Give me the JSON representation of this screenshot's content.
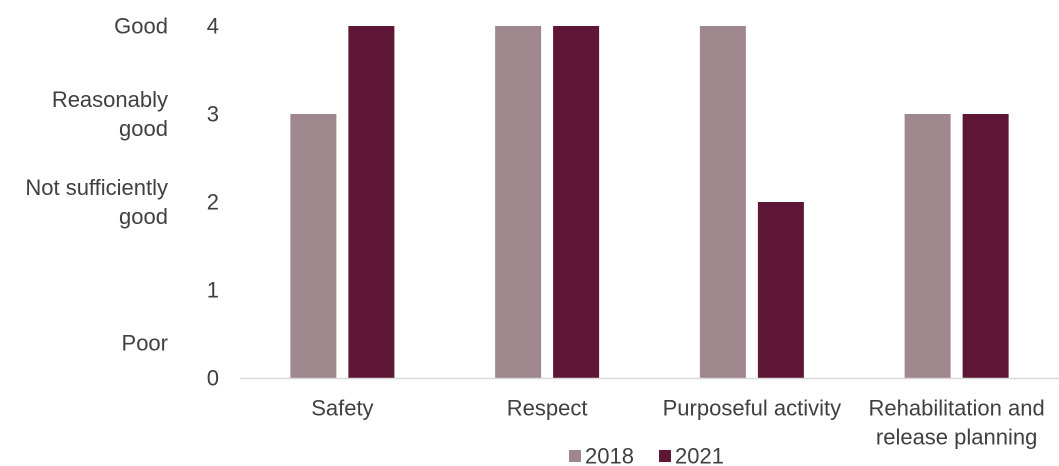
{
  "chart_data": {
    "type": "bar",
    "categories": [
      [
        "Safety"
      ],
      [
        "Respect"
      ],
      [
        "Purposeful activity"
      ],
      [
        "Rehabilitation and",
        "release planning"
      ]
    ],
    "series": [
      {
        "name": "2018",
        "values": [
          3,
          4,
          4,
          3
        ]
      },
      {
        "name": "2021",
        "values": [
          4,
          4,
          2,
          3
        ]
      }
    ],
    "ylim": [
      0,
      4
    ],
    "yticks": [
      "0",
      "1",
      "2",
      "3",
      "4"
    ],
    "rating_labels": [
      {
        "value": 4,
        "lines": [
          "Good"
        ]
      },
      {
        "value": 3,
        "lines": [
          "Reasonably",
          "good"
        ]
      },
      {
        "value": 2,
        "lines": [
          "Not sufficiently",
          "good"
        ]
      },
      {
        "value": 0.4,
        "lines": [
          "Poor"
        ]
      }
    ],
    "legend": "bottom",
    "grid": false
  },
  "colors": {
    "2018": "#a0868d",
    "2021": "#5e1636",
    "axis": "#d9d9d9",
    "text": "#404040"
  }
}
